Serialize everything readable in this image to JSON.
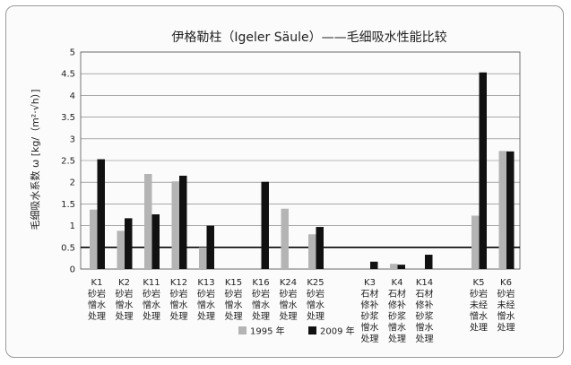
{
  "chart_data": {
    "type": "bar",
    "title": "伊格勒柱（Igeler Säule）——毛细吸水性能比较",
    "ylabel": "毛细吸水系数 ω [kg/（m²·√h）]",
    "xlabel": "",
    "ylim": [
      0,
      5
    ],
    "yticks": [
      "0",
      "0.5",
      "1",
      "1.5",
      "2",
      "2.5",
      "3",
      "3.5",
      "4",
      "4.5",
      "5"
    ],
    "reference_line": 0.5,
    "grid": true,
    "legend": "bottom",
    "categories": [
      {
        "label": "K1",
        "desc": [
          "砂岩",
          "憎水",
          "处理"
        ],
        "group": 0
      },
      {
        "label": "K2",
        "desc": [
          "砂岩",
          "憎水",
          "处理"
        ],
        "group": 0
      },
      {
        "label": "K11",
        "desc": [
          "砂岩",
          "憎水",
          "处理"
        ],
        "group": 0
      },
      {
        "label": "K12",
        "desc": [
          "砂岩",
          "憎水",
          "处理"
        ],
        "group": 0
      },
      {
        "label": "K13",
        "desc": [
          "砂岩",
          "憎水",
          "处理"
        ],
        "group": 0
      },
      {
        "label": "K15",
        "desc": [
          "砂岩",
          "憎水",
          "处理"
        ],
        "group": 0
      },
      {
        "label": "K16",
        "desc": [
          "砂岩",
          "憎水",
          "处理"
        ],
        "group": 0
      },
      {
        "label": "K24",
        "desc": [
          "砂岩",
          "憎水",
          "处理"
        ],
        "group": 0
      },
      {
        "label": "K25",
        "desc": [
          "砂岩",
          "憎水",
          "处理"
        ],
        "group": 0
      },
      {
        "label": "K3",
        "desc": [
          "石材",
          "修补",
          "砂浆",
          "憎水",
          "处理"
        ],
        "group": 1
      },
      {
        "label": "K4",
        "desc": [
          "石材",
          "修补",
          "砂浆",
          "憎水",
          "处理"
        ],
        "group": 1
      },
      {
        "label": "K14",
        "desc": [
          "石材",
          "修补",
          "砂浆",
          "憎水",
          "处理"
        ],
        "group": 1
      },
      {
        "label": "K5",
        "desc": [
          "砂岩",
          "未经",
          "憎水",
          "处理"
        ],
        "group": 2
      },
      {
        "label": "K6",
        "desc": [
          "砂岩",
          "未经",
          "憎水",
          "处理"
        ],
        "group": 2
      }
    ],
    "series": [
      {
        "name": "1995 年",
        "color": "#b4b4b4",
        "values": [
          1.37,
          0.88,
          2.19,
          2.02,
          0.5,
          0,
          0,
          1.39,
          0.8,
          0,
          0.12,
          0,
          1.23,
          2.72
        ]
      },
      {
        "name": "2009 年",
        "color": "#111111",
        "values": [
          2.53,
          1.17,
          1.26,
          2.15,
          1.0,
          0,
          2.01,
          0,
          0.97,
          0.17,
          0.1,
          0.33,
          4.53,
          2.71
        ]
      }
    ]
  }
}
